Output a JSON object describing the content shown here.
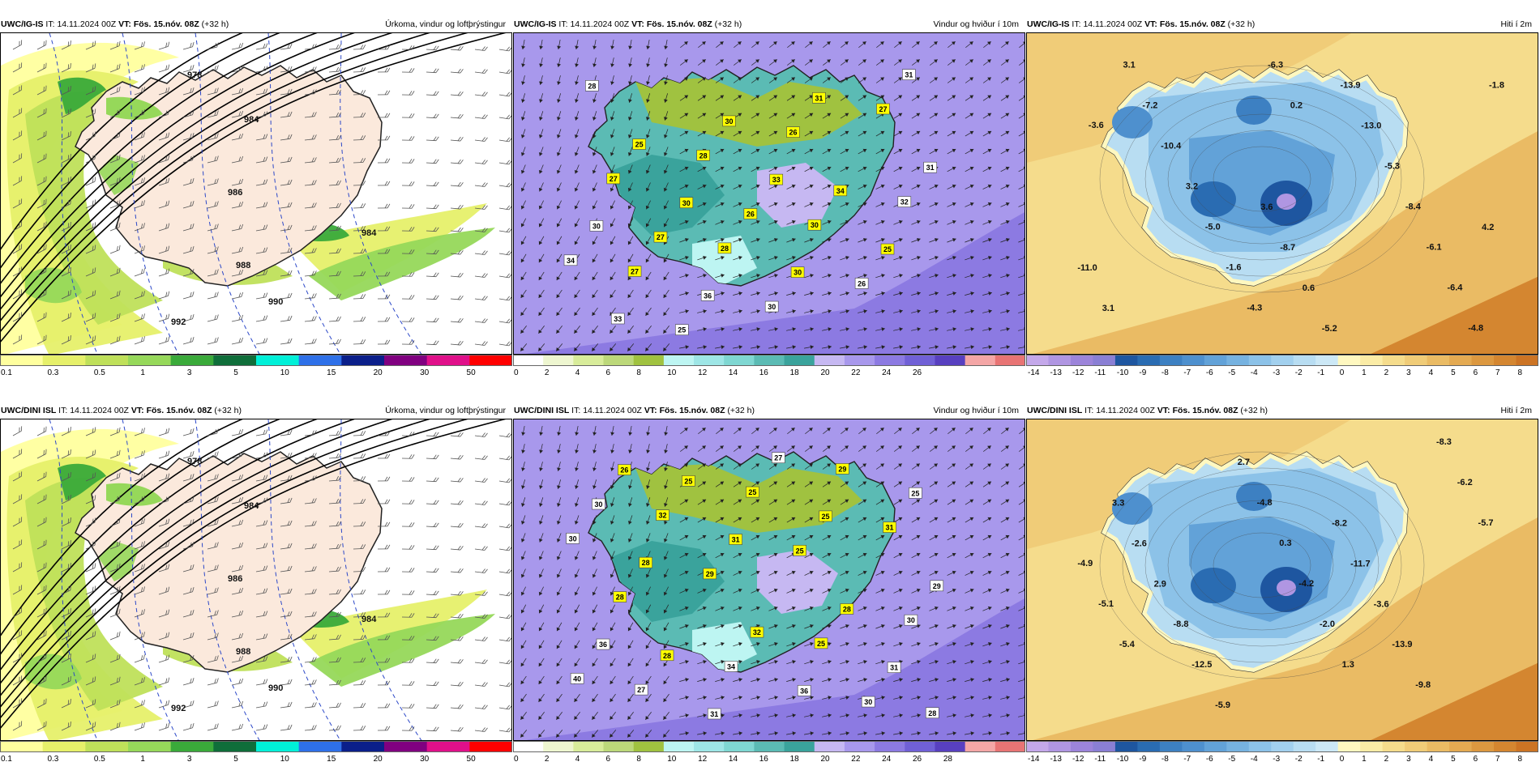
{
  "panels": [
    {
      "id": "p1",
      "model": "UWC/IG-IS",
      "it_label": "IT:",
      "it": "14.11.2024 00Z",
      "vt_label": "VT:",
      "vt": "Fös. 15.nóv. 08Z",
      "lead": "(+32 h)",
      "title": "Úrkoma, vindur og loftþrýstingur",
      "kind": "precip",
      "pressure": [
        "978",
        "984",
        "986",
        "988",
        "990",
        "992",
        "984"
      ],
      "ticks": [
        "0.1",
        "0.3",
        "0.5",
        "1",
        "3",
        "5",
        "10",
        "15",
        "20",
        "30",
        "50"
      ]
    },
    {
      "id": "p2",
      "model": "UWC/IG-IS",
      "it_label": "IT:",
      "it": "14.11.2024 00Z",
      "vt_label": "VT:",
      "vt": "Fös. 15.nóv. 08Z",
      "lead": "(+32 h)",
      "title": "Vindur og hviður í 10m",
      "kind": "wind",
      "gusts": [
        "27",
        "28",
        "30",
        "32",
        "27",
        "28",
        "26",
        "27",
        "28",
        "25",
        "30",
        "26",
        "34",
        "27",
        "26",
        "34",
        "31",
        "25",
        "30",
        "31",
        "31",
        "33",
        "36",
        "30",
        "25",
        "30",
        "30",
        "33"
      ],
      "ticks": [
        "0",
        "2",
        "4",
        "6",
        "8",
        "10",
        "12",
        "14",
        "16",
        "18",
        "20",
        "22",
        "24",
        "26"
      ]
    },
    {
      "id": "p3",
      "model": "UWC/IG-IS",
      "it_label": "IT:",
      "it": "14.11.2024 00Z",
      "vt_label": "VT:",
      "vt": "Fös. 15.nóv. 08Z",
      "lead": "(+32 h)",
      "title": "Hiti í 2m",
      "kind": "temp",
      "temps": [
        "-3.6",
        "0.2",
        "-1.8",
        "-6.3",
        "-4.8",
        "-4.3",
        "-6.4",
        "-1.6",
        "-6.1",
        "-5.0",
        "-8.4",
        "3.2",
        "-5.3",
        "-10.4",
        "-13.0",
        "-7.2",
        "-13.9",
        "3.1",
        "-5.2",
        "3.1",
        "0.6",
        "-11.0",
        "-8.7",
        "4.2",
        "3.6"
      ],
      "ticks": [
        "-14",
        "-13",
        "-12",
        "-11",
        "-10",
        "-9",
        "-8",
        "-7",
        "-6",
        "-5",
        "-4",
        "-3",
        "-2",
        "-1",
        "0",
        "1",
        "2",
        "3",
        "4",
        "5",
        "6",
        "7",
        "8"
      ]
    },
    {
      "id": "p4",
      "model": "UWC/DINI ISL",
      "it_label": "IT:",
      "it": "14.11.2024 00Z",
      "vt_label": "VT:",
      "vt": "Fös. 15.nóv. 08Z",
      "lead": "(+32 h)",
      "title": "Úrkoma, vindur og loftþrýstingur",
      "kind": "precip",
      "pressure": [
        "978",
        "984",
        "986",
        "988",
        "990",
        "992",
        "984"
      ],
      "ticks": [
        "0.1",
        "0.3",
        "0.5",
        "1",
        "3",
        "5",
        "10",
        "15",
        "20",
        "30",
        "50"
      ]
    },
    {
      "id": "p5",
      "model": "UWC/DINI ISL",
      "it_label": "IT:",
      "it": "14.11.2024 00Z",
      "vt_label": "VT:",
      "vt": "Fös. 15.nóv. 08Z",
      "lead": "(+32 h)",
      "title": "Vindur og hviður í 10m",
      "kind": "wind",
      "gusts": [
        "30",
        "32",
        "25",
        "29",
        "28",
        "27",
        "34",
        "25",
        "30",
        "28",
        "29",
        "25",
        "31",
        "30",
        "25",
        "27",
        "30",
        "40",
        "28",
        "32",
        "28",
        "29",
        "28",
        "31",
        "25",
        "25",
        "26",
        "31",
        "36",
        "31",
        "36"
      ],
      "ticks": [
        "0",
        "2",
        "4",
        "6",
        "8",
        "10",
        "12",
        "14",
        "16",
        "18",
        "20",
        "22",
        "24",
        "26",
        "28"
      ]
    },
    {
      "id": "p6",
      "model": "UWC/DINI ISL",
      "it_label": "IT:",
      "it": "14.11.2024 00Z",
      "vt_label": "VT:",
      "vt": "Fös. 15.nóv. 08Z",
      "lead": "(+32 h)",
      "title": "Hiti í 2m",
      "kind": "temp",
      "temps": [
        "1.3",
        "-5.4",
        "-2.0",
        "-5.1",
        "-4.2",
        "-4.9",
        "0.3",
        "-5.7",
        "-4.8",
        "-6.2",
        "2.7",
        "-8.3",
        "-5.9",
        "-9.8",
        "-12.5",
        "-13.9",
        "-8.8",
        "-3.6",
        "2.9",
        "-11.7",
        "-2.6",
        "-8.2",
        "3.3"
      ],
      "ticks": [
        "-14",
        "-13",
        "-12",
        "-11",
        "-10",
        "-9",
        "-8",
        "-7",
        "-6",
        "-5",
        "-4",
        "-3",
        "-2",
        "-1",
        "0",
        "1",
        "2",
        "3",
        "4",
        "5",
        "6",
        "7",
        "8"
      ]
    }
  ],
  "colors": {
    "precip": [
      "#ffff9e",
      "#e6f06a",
      "#bfe05a",
      "#96d85a",
      "#3aaa3a",
      "#0f6e3a",
      "#00f0d8",
      "#2e70e8",
      "#0b1f8a",
      "#800080",
      "#e0108a",
      "#ff0000"
    ],
    "wind": [
      "#ffffff",
      "#eef6d0",
      "#d8ec9a",
      "#bcd87a",
      "#a0c240",
      "#bdf5f2",
      "#9ee6e6",
      "#7fd7d2",
      "#5bbbb4",
      "#3aa39c",
      "#c6b8f2",
      "#a898ec",
      "#8c7ae2",
      "#7060d6",
      "#5840c0",
      "#f4a6a6",
      "#e87474"
    ],
    "temp": [
      "#c4a8ea",
      "#b096e2",
      "#9c84da",
      "#8a7fd4",
      "#1e56a0",
      "#2a6cb2",
      "#3d80c2",
      "#4e90ce",
      "#62a2d8",
      "#76b2e0",
      "#8cc2e8",
      "#a2d0ee",
      "#b8ddf2",
      "#cce8f6",
      "#fff8c0",
      "#fbeca6",
      "#f5dc8c",
      "#f0cc78",
      "#eabb64",
      "#e4aa52",
      "#dc9840",
      "#d48630",
      "#cc7424"
    ]
  }
}
